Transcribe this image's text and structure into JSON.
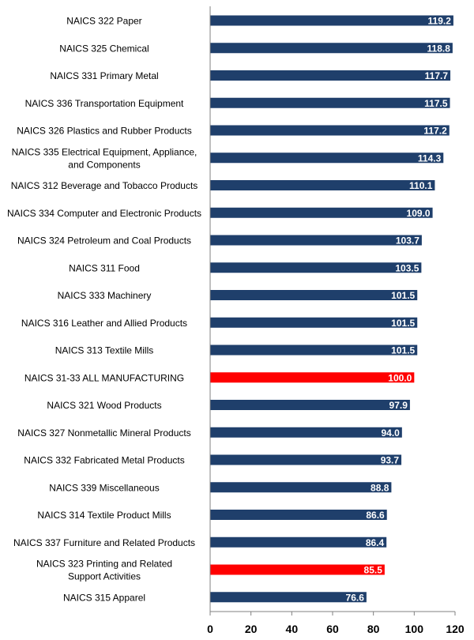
{
  "chart_data": {
    "type": "bar",
    "orientation": "horizontal",
    "title": "",
    "xlabel": "",
    "ylabel": "",
    "xlim": [
      0,
      120
    ],
    "xticks": [
      0,
      20,
      40,
      60,
      80,
      100,
      120
    ],
    "grid": false,
    "legend": "none",
    "colors": {
      "default": "#1F3F6B",
      "highlight": "#FF0000",
      "value_text": "#FFFFFF"
    },
    "categories": [
      [
        "NAICS 322 Paper"
      ],
      [
        "NAICS 325 Chemical"
      ],
      [
        "NAICS 331 Primary Metal"
      ],
      [
        "NAICS 336 Transportation Equipment"
      ],
      [
        "NAICS 326 Plastics and Rubber Products"
      ],
      [
        "NAICS 335 Electrical Equipment, Appliance,",
        "and Components"
      ],
      [
        "NAICS 312 Beverage and Tobacco Products"
      ],
      [
        "NAICS 334 Computer and Electronic Products"
      ],
      [
        "NAICS 324 Petroleum and Coal Products"
      ],
      [
        "NAICS 311 Food"
      ],
      [
        "NAICS 333 Machinery"
      ],
      [
        "NAICS 316 Leather and Allied Products"
      ],
      [
        "NAICS 313 Textile Mills"
      ],
      [
        "NAICS 31-33 ALL MANUFACTURING"
      ],
      [
        "NAICS 321 Wood Products"
      ],
      [
        "NAICS 327 Nonmetallic Mineral Products"
      ],
      [
        "NAICS 332 Fabricated Metal Products"
      ],
      [
        "NAICS 339 Miscellaneous"
      ],
      [
        "NAICS 314 Textile Product Mills"
      ],
      [
        "NAICS 337 Furniture and Related Products"
      ],
      [
        "NAICS 323 Printing and Related",
        "Support Activities"
      ],
      [
        "NAICS 315 Apparel"
      ]
    ],
    "values": [
      119.2,
      118.8,
      117.7,
      117.5,
      117.2,
      114.3,
      110.1,
      109.0,
      103.7,
      103.5,
      101.5,
      101.5,
      101.5,
      100.0,
      97.9,
      94.0,
      93.7,
      88.8,
      86.6,
      86.4,
      85.5,
      76.6
    ],
    "value_labels": [
      "119.2",
      "118.8",
      "117.7",
      "117.5",
      "117.2",
      "114.3",
      "110.1",
      "109.0",
      "103.7",
      "103.5",
      "101.5",
      "101.5",
      "101.5",
      "100.0",
      "97.9",
      "94.0",
      "93.7",
      "88.8",
      "86.6",
      "86.4",
      "85.5",
      "76.6"
    ],
    "highlighted": [
      false,
      false,
      false,
      false,
      false,
      false,
      false,
      false,
      false,
      false,
      false,
      false,
      false,
      true,
      false,
      false,
      false,
      false,
      false,
      false,
      true,
      false
    ]
  }
}
